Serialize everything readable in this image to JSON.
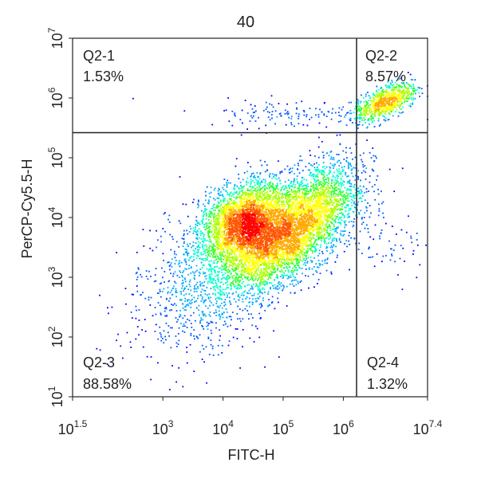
{
  "chart_data": {
    "type": "scatter",
    "title": "40",
    "xlabel": "FITC-H",
    "ylabel": "PerCP-Cy5.5-H",
    "x_scale": "log10",
    "y_scale": "log10",
    "xlim": [
      1.5,
      7.4
    ],
    "ylim": [
      1,
      7
    ],
    "x_ticks": [
      {
        "base": "10",
        "exp": "1.5"
      },
      {
        "base": "10",
        "exp": "3"
      },
      {
        "base": "10",
        "exp": "4"
      },
      {
        "base": "10",
        "exp": "5"
      },
      {
        "base": "10",
        "exp": "6"
      },
      {
        "base": "10",
        "exp": "7.4"
      }
    ],
    "y_ticks": [
      {
        "base": "10",
        "exp": "1"
      },
      {
        "base": "10",
        "exp": "2"
      },
      {
        "base": "10",
        "exp": "3"
      },
      {
        "base": "10",
        "exp": "4"
      },
      {
        "base": "10",
        "exp": "5"
      },
      {
        "base": "10",
        "exp": "6"
      },
      {
        "base": "10",
        "exp": "7"
      }
    ],
    "gates": {
      "x_log10": 6.22,
      "y_log10": 5.42
    },
    "quadrants": [
      {
        "name": "Q2-1",
        "percent": "1.53%"
      },
      {
        "name": "Q2-2",
        "percent": "8.57%"
      },
      {
        "name": "Q2-3",
        "percent": "88.58%"
      },
      {
        "name": "Q2-4",
        "percent": "1.32%"
      }
    ],
    "populations": [
      {
        "center_log10": [
          4.35,
          3.95
        ],
        "spread_log10": [
          0.42,
          0.28
        ],
        "angle_deg": 36,
        "weight": 0.32
      },
      {
        "center_log10": [
          4.95,
          3.6
        ],
        "spread_log10": [
          0.55,
          0.3
        ],
        "angle_deg": 38,
        "weight": 0.34
      },
      {
        "center_log10": [
          3.75,
          2.9
        ],
        "spread_log10": [
          0.7,
          0.5
        ],
        "angle_deg": 42,
        "weight": 0.1
      },
      {
        "center_log10": [
          5.6,
          4.3
        ],
        "spread_log10": [
          0.45,
          0.3
        ],
        "angle_deg": 40,
        "weight": 0.13
      },
      {
        "center_log10": [
          6.7,
          5.95
        ],
        "spread_log10": [
          0.28,
          0.12
        ],
        "angle_deg": 25,
        "weight": 0.085
      },
      {
        "center_log10": [
          5.2,
          5.75
        ],
        "spread_log10": [
          0.8,
          0.12
        ],
        "angle_deg": 0,
        "weight": 0.015
      },
      {
        "center_log10": [
          6.5,
          3.6
        ],
        "spread_log10": [
          0.25,
          0.45
        ],
        "angle_deg": 80,
        "weight": 0.01
      }
    ],
    "density_colors": [
      "#0000ff",
      "#0055ff",
      "#00aaff",
      "#00ffcc",
      "#33ff33",
      "#aaff00",
      "#ffff00",
      "#ffaa00",
      "#ff5500",
      "#ff0000"
    ],
    "grid": false
  }
}
